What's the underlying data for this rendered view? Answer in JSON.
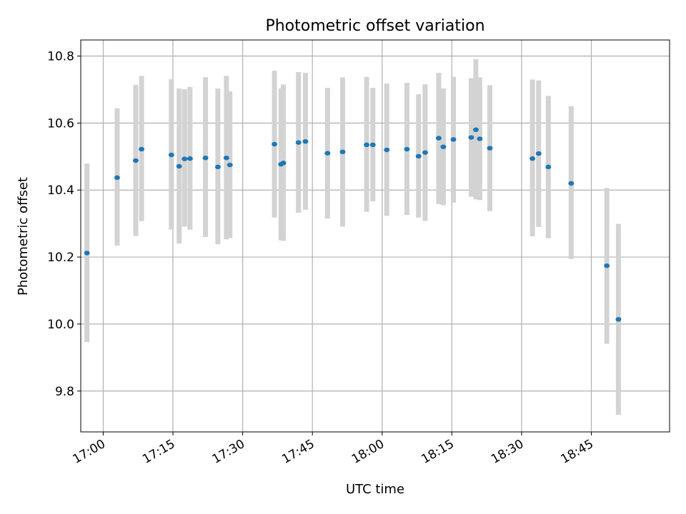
{
  "chart_data": {
    "type": "scatter",
    "title": "Photometric offset variation",
    "xlabel": "UTC time",
    "ylabel": "Photometric offset",
    "grid": true,
    "x_ticks": [
      "17:00",
      "17:15",
      "17:30",
      "17:45",
      "18:00",
      "18:15",
      "18:30",
      "18:45"
    ],
    "y_ticks": [
      "9.8",
      "10.0",
      "10.2",
      "10.4",
      "10.6",
      "10.8"
    ],
    "xlim": [
      "16:55:10",
      "19:01:50"
    ],
    "ylim": [
      9.678,
      10.848
    ],
    "colors": {
      "point": "#1f77b4",
      "error_bar": "#d3d3d3",
      "grid": "#b0b0b0"
    },
    "series": [
      {
        "x": [
          "16:56:30",
          "17:03:00",
          "17:07:00",
          "17:08:15",
          "17:14:40",
          "17:16:20",
          "17:17:30",
          "17:18:40",
          "17:22:00",
          "17:24:40",
          "17:26:30",
          "17:27:15",
          "17:36:50",
          "17:38:15",
          "17:38:45",
          "17:42:00",
          "17:43:30",
          "17:48:15",
          "17:51:30",
          "17:56:40",
          "17:58:00",
          "18:01:00",
          "18:05:20",
          "18:07:50",
          "18:09:15",
          "18:12:10",
          "18:13:10",
          "18:15:20",
          "18:19:10",
          "18:20:10",
          "18:21:00",
          "18:23:10",
          "18:32:20",
          "18:33:40",
          "18:35:45",
          "18:40:40",
          "18:48:20",
          "18:50:50"
        ],
        "y": [
          10.212,
          10.437,
          10.488,
          10.522,
          10.505,
          10.471,
          10.493,
          10.494,
          10.496,
          10.469,
          10.496,
          10.475,
          10.537,
          10.477,
          10.481,
          10.542,
          10.545,
          10.51,
          10.514,
          10.535,
          10.535,
          10.52,
          10.522,
          10.501,
          10.512,
          10.555,
          10.529,
          10.551,
          10.557,
          10.58,
          10.553,
          10.525,
          10.494,
          10.509,
          10.469,
          10.42,
          10.174,
          10.014
        ],
        "y_low": [
          9.946,
          10.234,
          10.263,
          10.307,
          10.282,
          10.24,
          10.291,
          10.282,
          10.26,
          10.238,
          10.253,
          10.257,
          10.318,
          10.25,
          10.248,
          10.332,
          10.341,
          10.315,
          10.291,
          10.335,
          10.366,
          10.323,
          10.326,
          10.318,
          10.308,
          10.358,
          10.355,
          10.362,
          10.38,
          10.372,
          10.37,
          10.337,
          10.262,
          10.29,
          10.256,
          10.194,
          9.941,
          9.729
        ],
        "y_high": [
          10.479,
          10.644,
          10.714,
          10.741,
          10.731,
          10.703,
          10.701,
          10.708,
          10.737,
          10.703,
          10.741,
          10.695,
          10.756,
          10.704,
          10.715,
          10.752,
          10.75,
          10.705,
          10.736,
          10.738,
          10.705,
          10.718,
          10.72,
          10.686,
          10.716,
          10.75,
          10.703,
          10.738,
          10.734,
          10.791,
          10.736,
          10.713,
          10.73,
          10.727,
          10.681,
          10.65,
          10.406,
          10.299
        ]
      }
    ]
  }
}
